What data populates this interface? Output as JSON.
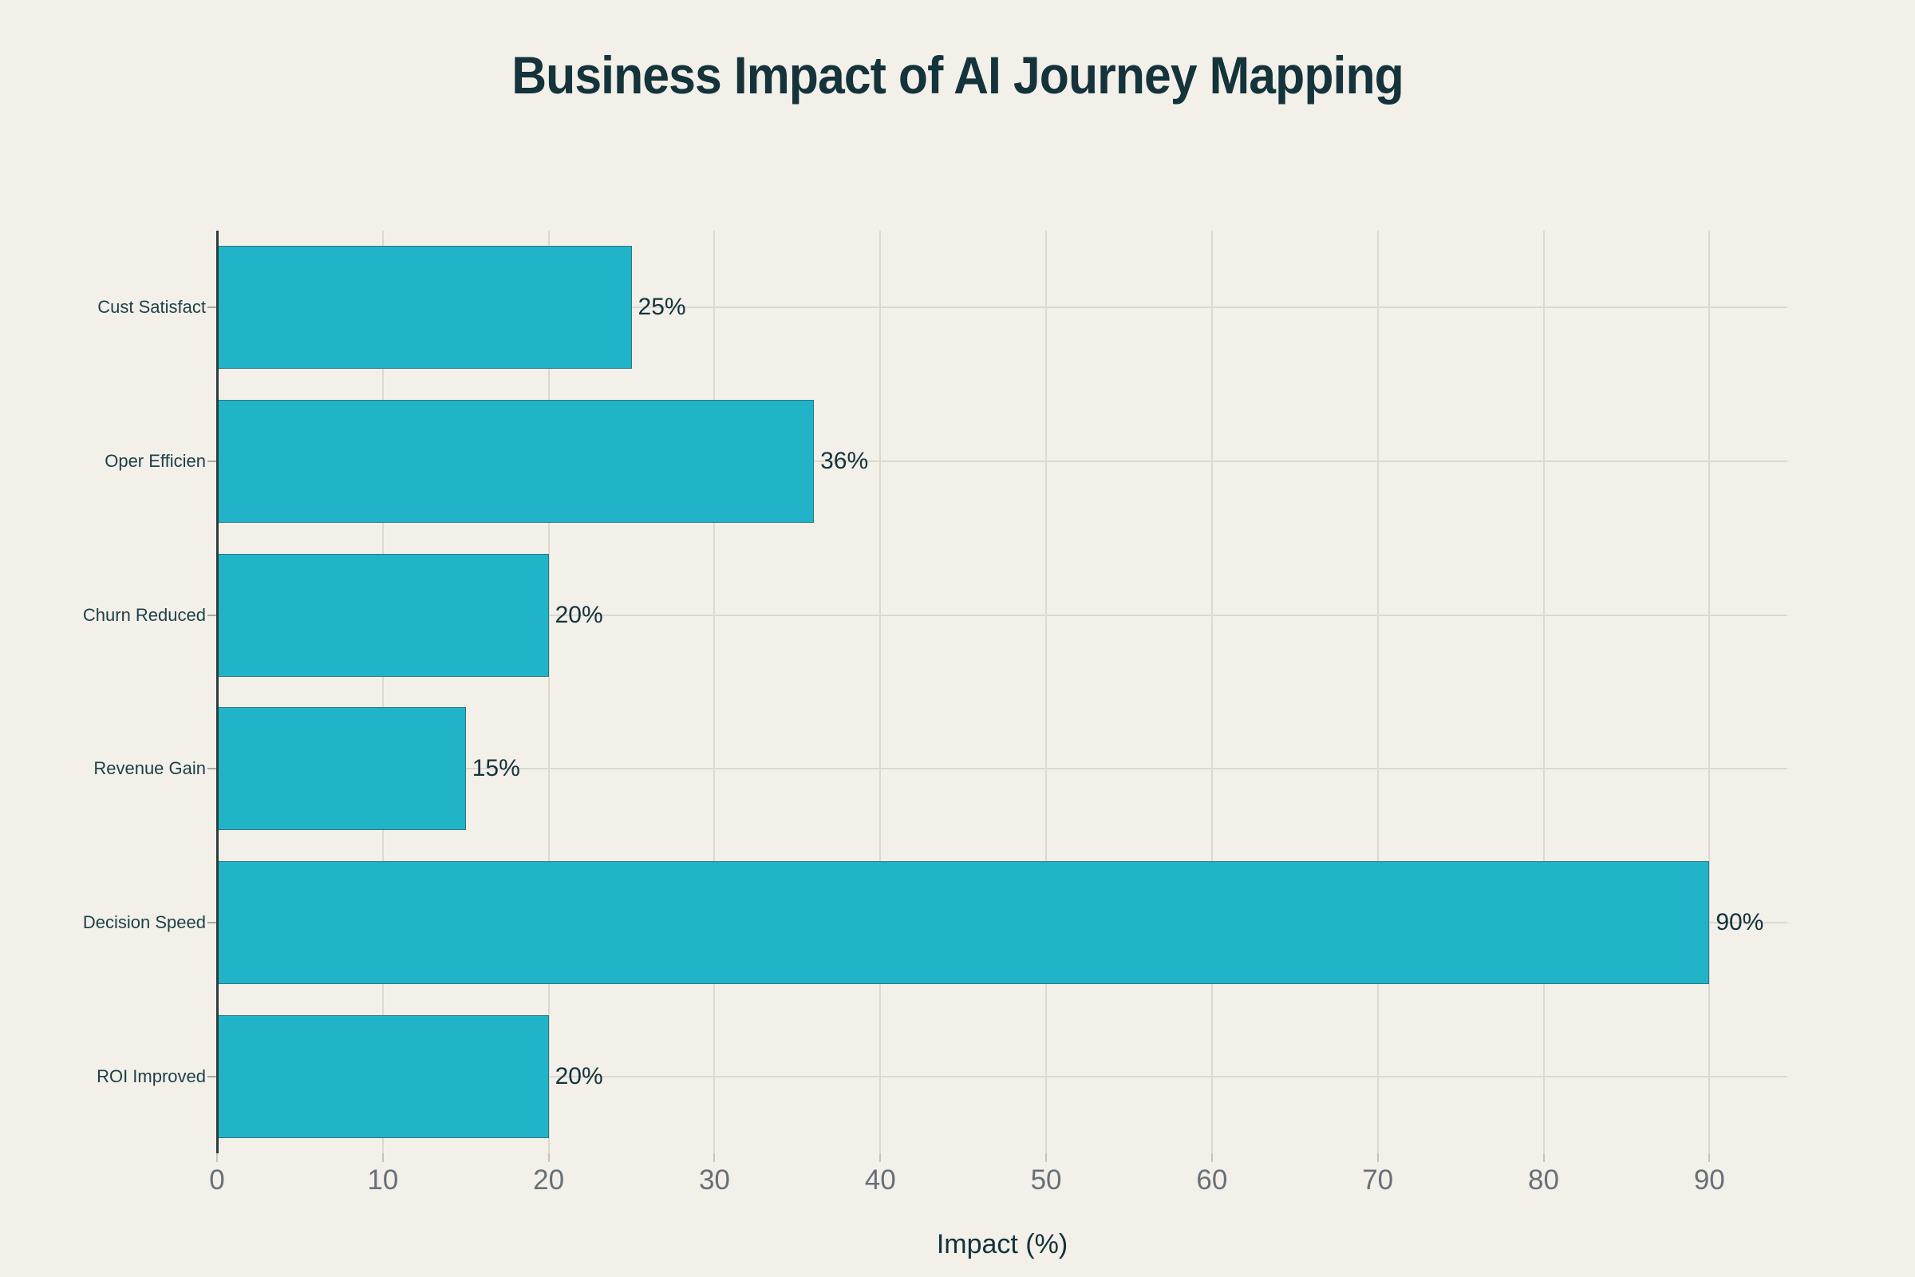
{
  "chart_data": {
    "type": "bar",
    "orientation": "horizontal",
    "title": "Business Impact of AI Journey Mapping",
    "xlabel": "Impact (%)",
    "ylabel": "",
    "categories": [
      "Cust Satisfact",
      "Oper Efficien",
      "Churn Reduced",
      "Revenue Gain",
      "Decision Speed",
      "ROI Improved"
    ],
    "values": [
      25,
      36,
      20,
      15,
      90,
      20
    ],
    "value_labels": [
      "25%",
      "36%",
      "20%",
      "15%",
      "90%",
      "20%"
    ],
    "x_ticks": [
      0,
      10,
      20,
      30,
      40,
      50,
      60,
      70,
      80,
      90
    ],
    "xlim": [
      0,
      94.7
    ],
    "grid": true,
    "legend": false,
    "bar_fraction": 0.8,
    "colors": {
      "background": "#f2f0e9",
      "bar": "#21b4c9",
      "bar_border": "#2f3b3e",
      "grid": "#dcd9d0",
      "axis_line": "#2e3b3e",
      "title": "#14333b",
      "category_label": "#1d3f47",
      "value_label": "#14333b",
      "tick_label": "#687076"
    }
  }
}
